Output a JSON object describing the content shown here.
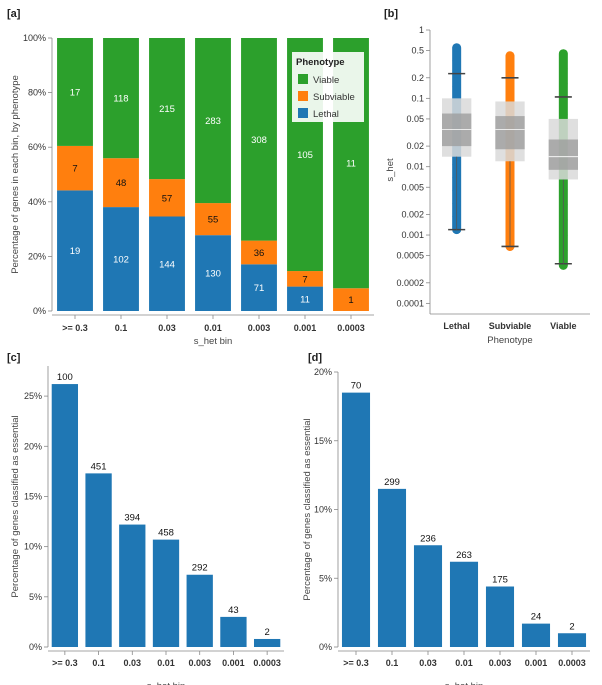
{
  "colors": {
    "lethal": "#1f77b4",
    "subviable": "#ff7f0e",
    "viable": "#2ca02c"
  },
  "chart_data": [
    {
      "panel": "[a]",
      "type": "bar",
      "stacked": "percent",
      "categories": [
        ">= 0.3",
        "0.1",
        "0.03",
        "0.01",
        "0.003",
        "0.001",
        "0.0003"
      ],
      "series": [
        {
          "name": "Lethal",
          "values": [
            19,
            102,
            144,
            130,
            71,
            11,
            0
          ],
          "labels": [
            "19",
            "102",
            "144",
            "130",
            "71",
            "11",
            ""
          ]
        },
        {
          "name": "Subviable",
          "values": [
            7,
            48,
            57,
            55,
            36,
            7,
            1
          ],
          "labels": [
            "7",
            "48",
            "57",
            "55",
            "36",
            "7",
            "1"
          ]
        },
        {
          "name": "Viable",
          "values": [
            17,
            118,
            215,
            283,
            308,
            105,
            11
          ],
          "labels": [
            "17",
            "118",
            "215",
            "283",
            "308",
            "105",
            "11"
          ]
        }
      ],
      "xlabel": "s_het bin",
      "ylabel": "Percentage of genes in each bin, by phenotype",
      "yticks": [
        "0%",
        "20%",
        "40%",
        "60%",
        "80%",
        "100%"
      ],
      "ylim": [
        0,
        1
      ],
      "legend": {
        "title": "Phenotype",
        "entries": [
          "Viable",
          "Subviable",
          "Lethal"
        ],
        "position": "top-right"
      }
    },
    {
      "panel": "[b]",
      "type": "box",
      "yscale": "log",
      "categories": [
        "Lethal",
        "Subviable",
        "Viable"
      ],
      "boxes": [
        {
          "name": "Lethal",
          "whisker_low": 0.0012,
          "q1": 0.014,
          "q_inner_low": 0.02,
          "median": 0.035,
          "q_inner_high": 0.06,
          "q3": 0.1,
          "whisker_high": 0.23,
          "points_low": 0.0012,
          "points_high": 0.55
        },
        {
          "name": "Subviable",
          "whisker_low": 0.00068,
          "q1": 0.012,
          "q_inner_low": 0.018,
          "median": 0.035,
          "q_inner_high": 0.055,
          "q3": 0.09,
          "whisker_high": 0.2,
          "points_low": 0.00068,
          "points_high": 0.42
        },
        {
          "name": "Viable",
          "whisker_low": 0.00038,
          "q1": 0.0065,
          "q_inner_low": 0.009,
          "median": 0.014,
          "q_inner_high": 0.025,
          "q3": 0.05,
          "whisker_high": 0.105,
          "points_low": 0.00036,
          "points_high": 0.45
        }
      ],
      "yticks": [
        {
          "v": 1,
          "label": "1"
        },
        {
          "v": 0.5,
          "label": "0.5"
        },
        {
          "v": 0.2,
          "label": "0.2"
        },
        {
          "v": 0.1,
          "label": "0.1"
        },
        {
          "v": 0.05,
          "label": "0.05"
        },
        {
          "v": 0.02,
          "label": "0.02"
        },
        {
          "v": 0.01,
          "label": "0.01"
        },
        {
          "v": 0.005,
          "label": "0.005"
        },
        {
          "v": 0.002,
          "label": "0.002"
        },
        {
          "v": 0.001,
          "label": "0.001"
        },
        {
          "v": 0.0005,
          "label": "0.0005"
        },
        {
          "v": 0.0002,
          "label": "0.0002"
        },
        {
          "v": 0.0001,
          "label": "0.0001"
        }
      ],
      "ylim": [
        8e-05,
        1
      ],
      "xlabel": "Phenotype",
      "ylabel": "s_het"
    },
    {
      "panel": "[c]",
      "type": "bar",
      "categories": [
        ">= 0.3",
        "0.1",
        "0.03",
        "0.01",
        "0.003",
        "0.001",
        "0.0003"
      ],
      "values": [
        0.262,
        0.173,
        0.122,
        0.107,
        0.072,
        0.03,
        0.008
      ],
      "bar_labels": [
        "100",
        "451",
        "394",
        "458",
        "292",
        "43",
        "2"
      ],
      "xlabel": "s_het bin",
      "ylabel": "Percentage of genes classified as essential",
      "yticks": [
        {
          "v": 0,
          "label": "0%"
        },
        {
          "v": 0.05,
          "label": "5%"
        },
        {
          "v": 0.1,
          "label": "10%"
        },
        {
          "v": 0.15,
          "label": "15%"
        },
        {
          "v": 0.2,
          "label": "20%"
        },
        {
          "v": 0.25,
          "label": "25%"
        }
      ],
      "ylim": [
        0,
        0.28
      ]
    },
    {
      "panel": "[d]",
      "type": "bar",
      "categories": [
        ">= 0.3",
        "0.1",
        "0.03",
        "0.01",
        "0.003",
        "0.001",
        "0.0003"
      ],
      "values": [
        0.185,
        0.115,
        0.074,
        0.062,
        0.044,
        0.017,
        0.01
      ],
      "bar_labels": [
        "70",
        "299",
        "236",
        "263",
        "175",
        "24",
        "2"
      ],
      "xlabel": "s_het bin",
      "ylabel": "Percentage of genes classified as essential",
      "yticks": [
        {
          "v": 0,
          "label": "0%"
        },
        {
          "v": 0.05,
          "label": "5%"
        },
        {
          "v": 0.1,
          "label": "10%"
        },
        {
          "v": 0.15,
          "label": "15%"
        },
        {
          "v": 0.2,
          "label": "20%"
        }
      ],
      "ylim": [
        0,
        0.2
      ]
    }
  ]
}
